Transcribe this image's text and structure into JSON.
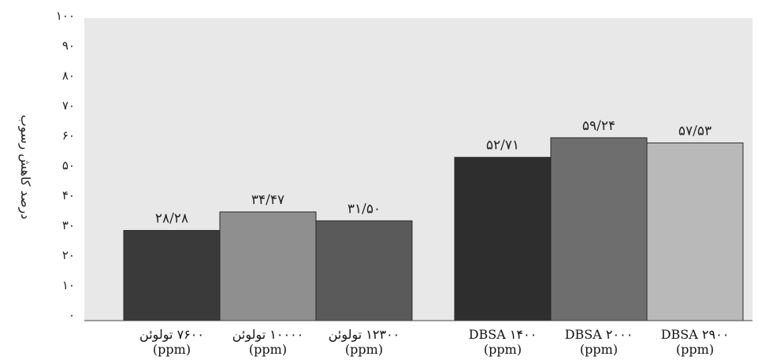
{
  "chart_data": {
    "type": "bar",
    "ylabel": "درصد کاهش رسوب",
    "ylim": [
      0,
      100
    ],
    "yticks": [
      "۰",
      "۱۰",
      "۲۰",
      "۳۰",
      "۴۰",
      "۵۰",
      "۶۰",
      "۷۰",
      "۸۰",
      "۹۰",
      "۱۰۰"
    ],
    "grid": false,
    "groups": [
      {
        "bars": [
          {
            "value": 28.28,
            "label": "۲۸/۲۸",
            "color": "#3a3a3a",
            "category": [
              "۷۶۰۰ تولوئن",
              "(ppm)"
            ]
          },
          {
            "value": 34.47,
            "label": "۳۴/۴۷",
            "color": "#8f8f8f",
            "category": [
              "۱۰۰۰۰ تولوئن",
              "(ppm)"
            ]
          },
          {
            "value": 31.5,
            "label": "۳۱/۵۰",
            "color": "#5a5a5a",
            "category": [
              "۱۲۳۰۰ تولوئن",
              "(ppm)"
            ]
          }
        ]
      },
      {
        "bars": [
          {
            "value": 52.71,
            "label": "۵۲/۷۱",
            "color": "#2e2e2e",
            "category": [
              "۱۴۰۰ DBSA",
              "(ppm)"
            ]
          },
          {
            "value": 59.24,
            "label": "۵۹/۲۴",
            "color": "#6e6e6e",
            "category": [
              "۲۰۰۰ DBSA",
              "(ppm)"
            ]
          },
          {
            "value": 57.53,
            "label": "۵۷/۵۳",
            "color": "#b9b9b9",
            "category": [
              "۲۹۰۰ DBSA",
              "(ppm)"
            ]
          }
        ]
      }
    ]
  }
}
